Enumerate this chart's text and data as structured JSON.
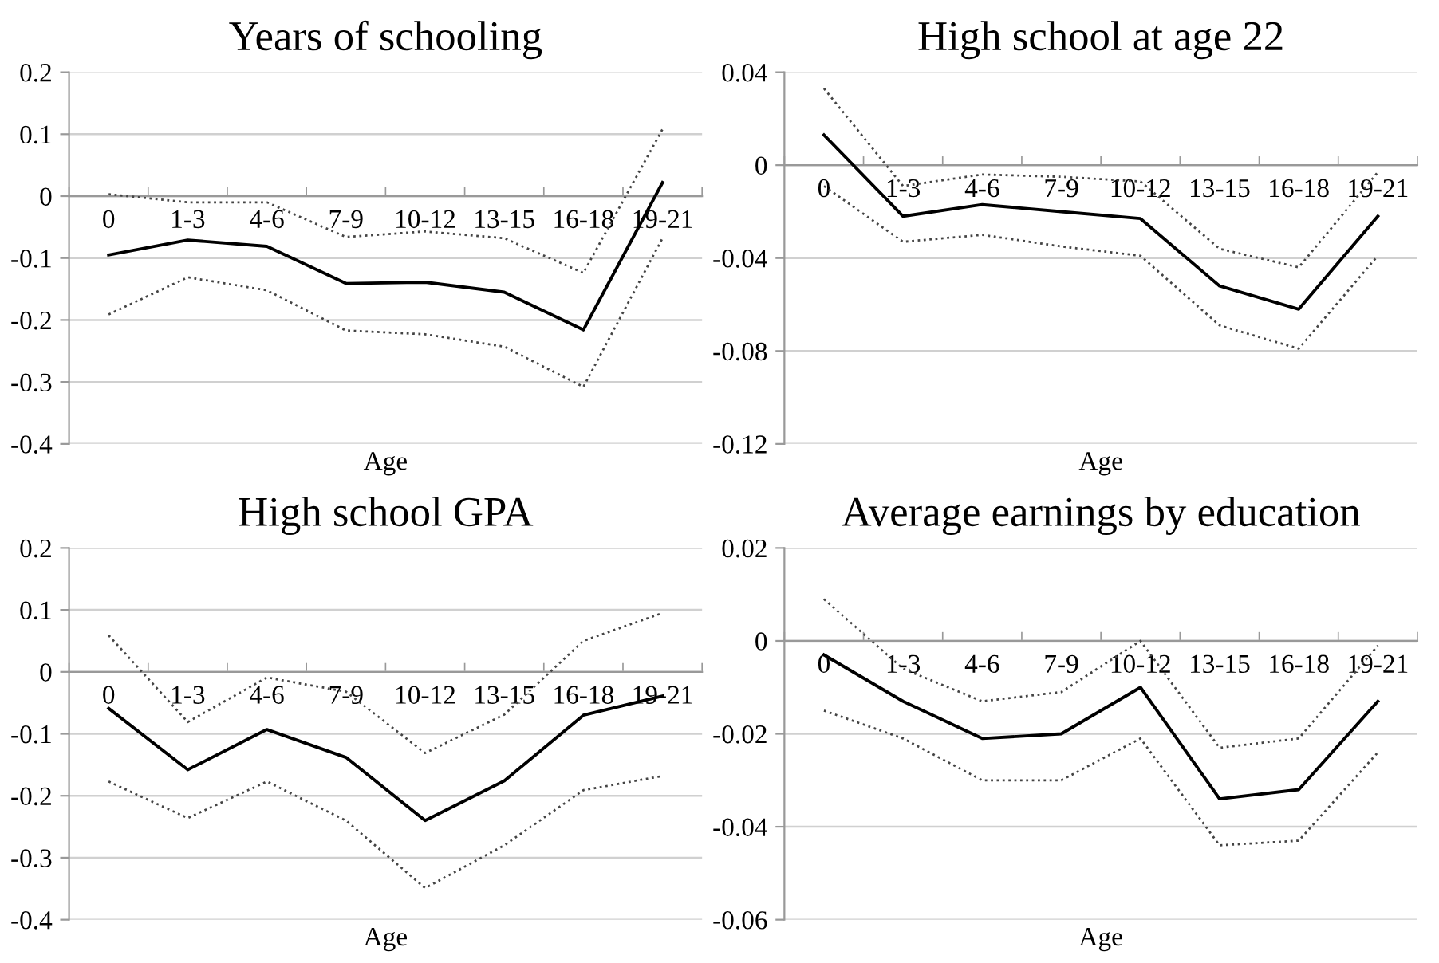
{
  "chart_data": [
    {
      "type": "line",
      "title": "Years of schooling",
      "xlabel": "Age",
      "categories": [
        "0",
        "1-3",
        "4-6",
        "7-9",
        "10-12",
        "13-15",
        "16-18",
        "19-21"
      ],
      "ylim": [
        -0.4,
        0.2
      ],
      "yticks": [
        -0.4,
        -0.3,
        -0.2,
        -0.1,
        0,
        0.1,
        0.2
      ],
      "grid": "y",
      "marker": "none",
      "series": [
        {
          "color": "#000000",
          "line_style": "solid",
          "values": [
            -0.095,
            -0.071,
            -0.081,
            -0.141,
            -0.139,
            -0.155,
            -0.216,
            0.022
          ]
        },
        {
          "color": "#444444",
          "line_style": "dotted",
          "values": [
            0.003,
            -0.01,
            -0.01,
            -0.066,
            -0.057,
            -0.068,
            -0.124,
            0.108
          ]
        },
        {
          "color": "#444444",
          "line_style": "dotted",
          "values": [
            -0.191,
            -0.131,
            -0.152,
            -0.217,
            -0.223,
            -0.243,
            -0.308,
            -0.068
          ]
        }
      ]
    },
    {
      "type": "line",
      "title": "High school at age 22",
      "xlabel": "Age",
      "categories": [
        "0",
        "1-3",
        "4-6",
        "7-9",
        "10-12",
        "13-15",
        "16-18",
        "19-21"
      ],
      "ylim": [
        -0.12,
        0.04
      ],
      "yticks": [
        -0.12,
        -0.08,
        -0.04,
        0,
        0.04
      ],
      "grid": "y",
      "marker": "none",
      "series": [
        {
          "color": "#000000",
          "line_style": "solid",
          "values": [
            0.013,
            -0.022,
            -0.017,
            -0.02,
            -0.023,
            -0.052,
            -0.062,
            -0.022
          ]
        },
        {
          "color": "#444444",
          "line_style": "dotted",
          "values": [
            0.033,
            -0.009,
            -0.004,
            -0.005,
            -0.007,
            -0.036,
            -0.044,
            -0.003
          ]
        },
        {
          "color": "#444444",
          "line_style": "dotted",
          "values": [
            -0.009,
            -0.033,
            -0.03,
            -0.035,
            -0.039,
            -0.069,
            -0.079,
            -0.039
          ]
        }
      ]
    },
    {
      "type": "line",
      "title": "High school GPA",
      "xlabel": "Age",
      "categories": [
        "0",
        "1-3",
        "4-6",
        "7-9",
        "10-12",
        "13-15",
        "16-18",
        "19-21"
      ],
      "ylim": [
        -0.4,
        0.2
      ],
      "yticks": [
        -0.4,
        -0.3,
        -0.2,
        -0.1,
        0,
        0.1,
        0.2
      ],
      "grid": "y",
      "marker": "none",
      "series": [
        {
          "color": "#000000",
          "line_style": "solid",
          "values": [
            -0.059,
            -0.158,
            -0.093,
            -0.138,
            -0.24,
            -0.176,
            -0.07,
            -0.039
          ]
        },
        {
          "color": "#444444",
          "line_style": "dotted",
          "values": [
            0.059,
            -0.081,
            -0.009,
            -0.032,
            -0.131,
            -0.069,
            0.05,
            0.095
          ]
        },
        {
          "color": "#444444",
          "line_style": "dotted",
          "values": [
            -0.177,
            -0.236,
            -0.177,
            -0.24,
            -0.349,
            -0.28,
            -0.191,
            -0.168
          ]
        }
      ]
    },
    {
      "type": "line",
      "title": "Average earnings by education",
      "xlabel": "Age",
      "categories": [
        "0",
        "1-3",
        "4-6",
        "7-9",
        "10-12",
        "13-15",
        "16-18",
        "19-21"
      ],
      "ylim": [
        -0.06,
        0.02
      ],
      "yticks": [
        -0.06,
        -0.04,
        -0.02,
        0,
        0.02
      ],
      "grid": "y",
      "marker": "none",
      "series": [
        {
          "color": "#000000",
          "line_style": "solid",
          "values": [
            -0.003,
            -0.013,
            -0.021,
            -0.02,
            -0.01,
            -0.034,
            -0.032,
            -0.013
          ]
        },
        {
          "color": "#444444",
          "line_style": "dotted",
          "values": [
            0.009,
            -0.006,
            -0.013,
            -0.011,
            0.0,
            -0.023,
            -0.021,
            -0.001
          ]
        },
        {
          "color": "#444444",
          "line_style": "dotted",
          "values": [
            -0.015,
            -0.021,
            -0.03,
            -0.03,
            -0.021,
            -0.044,
            -0.043,
            -0.024
          ]
        }
      ]
    }
  ]
}
